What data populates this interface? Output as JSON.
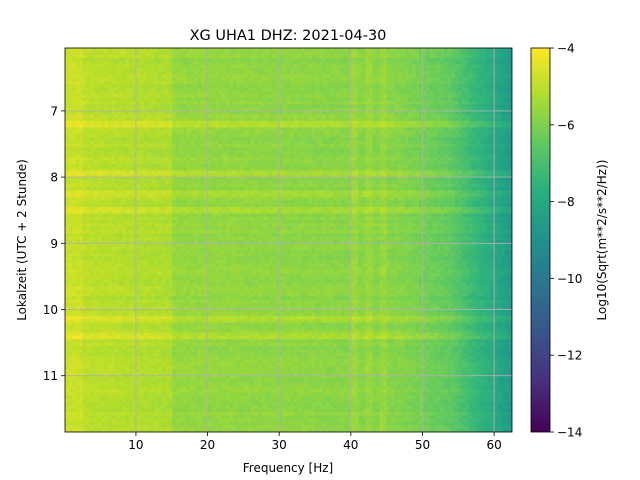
{
  "chart_data": {
    "type": "heatmap",
    "title": "XG UHA1  DHZ: 2021-04-30",
    "xlabel": "Frequency [Hz]",
    "ylabel": "Lokalzeit (UTC + 2 Stunde)",
    "x_range": [
      0.1,
      62.5
    ],
    "y_range": [
      6.05,
      11.85
    ],
    "y_inverted": true,
    "x_ticks": [
      10,
      20,
      30,
      40,
      50,
      60
    ],
    "y_ticks": [
      7,
      8,
      9,
      10,
      11
    ],
    "grid": true,
    "colormap": "viridis",
    "colorbar": {
      "label": "Log10(Sqrt(m**2/s**2/Hz))",
      "range": [
        -14,
        -4
      ],
      "ticks": [
        -4,
        -6,
        -8,
        -10,
        -12,
        -14
      ]
    },
    "description_values": {
      "low_freq_level": -5.0,
      "mid_freq_level": -5.6,
      "high_freq_level": -8.5,
      "bright_bands_hours": [
        7.2,
        7.95,
        8.25,
        8.5,
        10.15,
        10.4
      ],
      "narrowband_lines_hz": [
        40.5,
        42.5,
        44.5
      ]
    }
  }
}
